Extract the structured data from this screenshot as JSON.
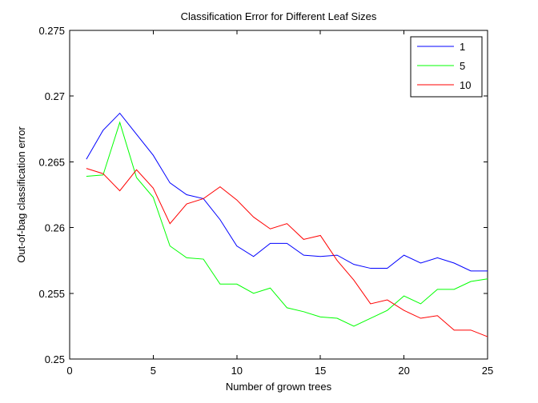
{
  "chart_data": {
    "type": "line",
    "title": "Classification Error for Different Leaf Sizes",
    "xlabel": "Number of grown trees",
    "ylabel": "Out-of-bag classification error",
    "xlim": [
      0,
      25
    ],
    "ylim": [
      0.25,
      0.275
    ],
    "xticks": [
      0,
      5,
      10,
      15,
      20,
      25
    ],
    "xtick_labels": [
      "0",
      "5",
      "10",
      "15",
      "20",
      "25"
    ],
    "yticks": [
      0.25,
      0.255,
      0.26,
      0.265,
      0.27,
      0.275
    ],
    "ytick_labels": [
      "0.25",
      "0.255",
      "0.26",
      "0.265",
      "0.27",
      "0.275"
    ],
    "grid": false,
    "legend_position": "top-right",
    "x": [
      1,
      2,
      3,
      4,
      5,
      6,
      7,
      8,
      9,
      10,
      11,
      12,
      13,
      14,
      15,
      16,
      17,
      18,
      19,
      20,
      21,
      22,
      23,
      24,
      25
    ],
    "series": [
      {
        "name": "1",
        "color": "#0000ff",
        "values": [
          0.2652,
          0.2674,
          0.2687,
          0.2671,
          0.2655,
          0.2634,
          0.2625,
          0.2622,
          0.2606,
          0.2586,
          0.2578,
          0.2588,
          0.2588,
          0.2579,
          0.2578,
          0.2579,
          0.2572,
          0.2569,
          0.2569,
          0.2579,
          0.2573,
          0.2577,
          0.2573,
          0.2567,
          0.2567
        ]
      },
      {
        "name": "5",
        "color": "#00ff00",
        "values": [
          0.2639,
          0.264,
          0.268,
          0.2638,
          0.2623,
          0.2586,
          0.2577,
          0.2576,
          0.2557,
          0.2557,
          0.255,
          0.2554,
          0.2539,
          0.2536,
          0.2532,
          0.2531,
          0.2525,
          0.2531,
          0.2537,
          0.2548,
          0.2542,
          0.2553,
          0.2553,
          0.2559,
          0.2561
        ]
      },
      {
        "name": "10",
        "color": "#ff0000",
        "values": [
          0.2645,
          0.2641,
          0.2628,
          0.2644,
          0.263,
          0.2603,
          0.2618,
          0.2622,
          0.2631,
          0.2621,
          0.2608,
          0.2599,
          0.2603,
          0.2591,
          0.2594,
          0.2575,
          0.256,
          0.2542,
          0.2545,
          0.2537,
          0.2531,
          0.2533,
          0.2522,
          0.2522,
          0.2517
        ]
      }
    ]
  }
}
